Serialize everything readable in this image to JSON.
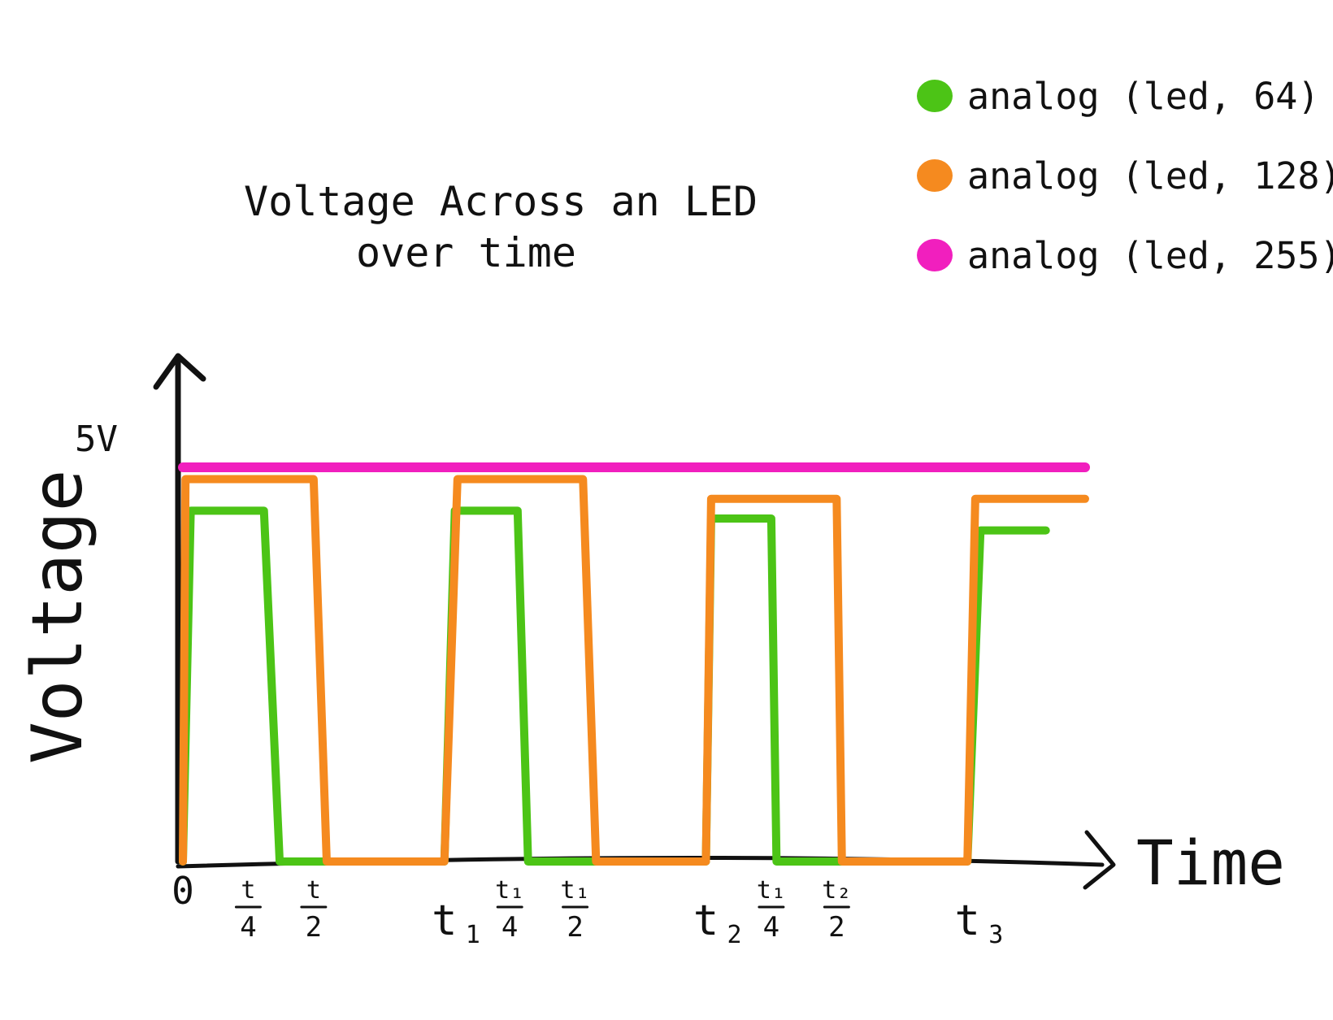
{
  "chart_data": {
    "type": "line",
    "title_line1": "Voltage Across an LED",
    "title_line2": "over time",
    "xlabel": "Time",
    "ylabel": "Voltage",
    "y_max_label": "5V",
    "grid": false,
    "legend_position": "top-right",
    "x_ticks": [
      {
        "value": 0,
        "numerator": "0",
        "denominator": "",
        "subscript": ""
      },
      {
        "value": 0.25,
        "numerator": "t",
        "denominator": "4",
        "subscript": ""
      },
      {
        "value": 0.5,
        "numerator": "t",
        "denominator": "2",
        "subscript": ""
      },
      {
        "value": 1.0,
        "numerator": "t",
        "denominator": "",
        "subscript": "1"
      },
      {
        "value": 1.25,
        "numerator": "t₁",
        "denominator": "4",
        "subscript": ""
      },
      {
        "value": 1.5,
        "numerator": "t₁",
        "denominator": "2",
        "subscript": ""
      },
      {
        "value": 2.0,
        "numerator": "t",
        "denominator": "",
        "subscript": "2"
      },
      {
        "value": 2.25,
        "numerator": "t₁",
        "denominator": "4",
        "subscript": ""
      },
      {
        "value": 2.5,
        "numerator": "t₂",
        "denominator": "2",
        "subscript": ""
      },
      {
        "value": 3.0,
        "numerator": "t",
        "denominator": "",
        "subscript": "3"
      }
    ],
    "series": [
      {
        "name": "analog (led, 64)",
        "color": "#4CC416",
        "x": [
          0,
          0.03,
          0.31,
          0.37,
          1.0,
          1.04,
          1.28,
          1.32,
          2.0,
          2.02,
          2.25,
          2.27,
          3.0,
          3.05,
          3.3
        ],
        "y": [
          0,
          4.45,
          4.45,
          0,
          0,
          4.45,
          4.45,
          0,
          0,
          4.35,
          4.35,
          0,
          0,
          4.2,
          4.2
        ]
      },
      {
        "name": "analog (led, 128)",
        "color": "#F58A1F",
        "x": [
          0,
          0.01,
          0.5,
          0.55,
          1.0,
          1.05,
          1.53,
          1.58,
          2.0,
          2.02,
          2.5,
          2.52,
          3.0,
          3.03,
          3.45
        ],
        "y": [
          0,
          4.85,
          4.85,
          0,
          0,
          4.85,
          4.85,
          0,
          0,
          4.6,
          4.6,
          0,
          0,
          4.6,
          4.6
        ]
      },
      {
        "name": "analog (led, 255)",
        "color": "#F11FBE",
        "x": [
          0,
          3.45
        ],
        "y": [
          5,
          5
        ]
      }
    ]
  }
}
